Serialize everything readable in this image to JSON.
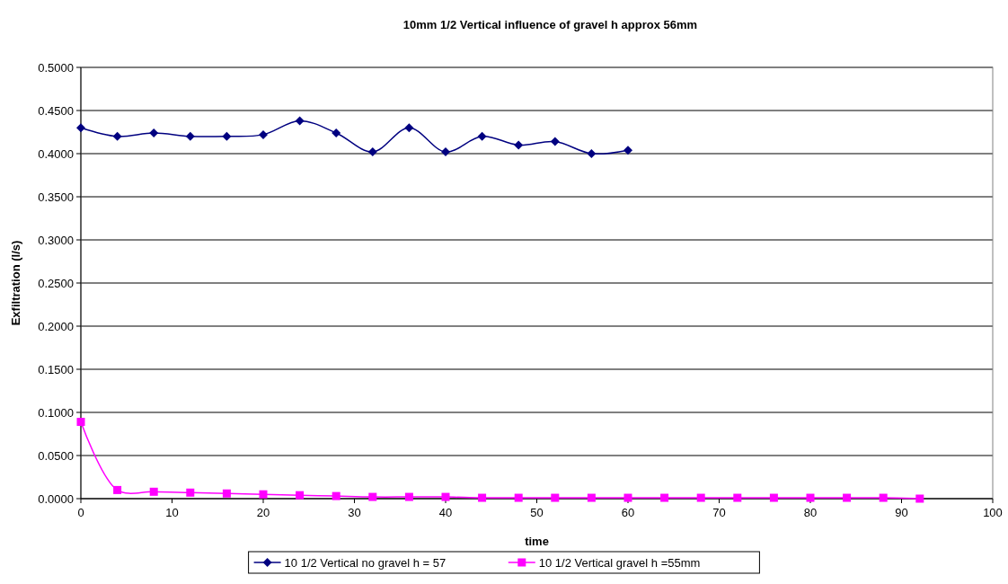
{
  "chart_data": {
    "type": "line",
    "title": "10mm 1/2 Vertical influence of gravel h approx 56mm",
    "xlabel": "time",
    "ylabel": "Exfiltration (l/s)",
    "xlim": [
      0,
      100
    ],
    "xticks": [
      0,
      10,
      20,
      30,
      40,
      50,
      60,
      70,
      80,
      90,
      100
    ],
    "ylim": [
      0,
      0.5
    ],
    "yticks": [
      {
        "value": 0,
        "label": "0.0000"
      },
      {
        "value": 0.05,
        "label": "0.0500"
      },
      {
        "value": 0.1,
        "label": "0.1000"
      },
      {
        "value": 0.15,
        "label": "0.1500"
      },
      {
        "value": 0.2,
        "label": "0.2000"
      },
      {
        "value": 0.25,
        "label": "0.2500"
      },
      {
        "value": 0.3,
        "label": "0.3000"
      },
      {
        "value": 0.35,
        "label": "0.3500"
      },
      {
        "value": 0.4,
        "label": "0.4000"
      },
      {
        "value": 0.45,
        "label": "0.4500"
      },
      {
        "value": 0.5,
        "label": "0.5000"
      }
    ],
    "grid": "y",
    "legend": "bottom",
    "series": [
      {
        "name": "10 1/2 Vertical no gravel h = 57",
        "color": "#000080",
        "marker": "diamond",
        "x": [
          0,
          4,
          8,
          12,
          16,
          20,
          24,
          28,
          32,
          36,
          40,
          44,
          48,
          52,
          56,
          60
        ],
        "values": [
          0.43,
          0.42,
          0.424,
          0.42,
          0.42,
          0.422,
          0.438,
          0.424,
          0.402,
          0.43,
          0.402,
          0.42,
          0.41,
          0.414,
          0.4,
          0.404
        ]
      },
      {
        "name": "10 1/2  Vertical gravel h =55mm",
        "color": "#ff00ff",
        "marker": "square",
        "x": [
          0,
          4,
          8,
          12,
          16,
          20,
          24,
          28,
          32,
          36,
          40,
          44,
          48,
          52,
          56,
          60,
          64,
          68,
          72,
          76,
          80,
          84,
          88,
          92
        ],
        "values": [
          0.089,
          0.01,
          0.008,
          0.007,
          0.006,
          0.005,
          0.004,
          0.003,
          0.002,
          0.002,
          0.002,
          0.001,
          0.001,
          0.001,
          0.001,
          0.001,
          0.001,
          0.001,
          0.001,
          0.001,
          0.001,
          0.001,
          0.001,
          0
        ]
      }
    ]
  }
}
